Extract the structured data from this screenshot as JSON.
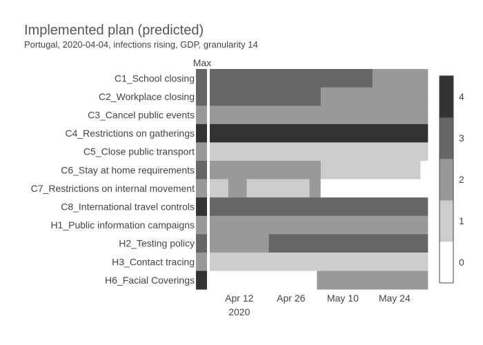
{
  "chart_data": {
    "type": "heatmap",
    "title": "Implemented plan (predicted)",
    "subtitle": "Portugal, 2020-04-04, infections rising, GDP, granularity 14",
    "max_label": "Max",
    "x_ticks": [
      {
        "date": "2020-04-12",
        "label": "Apr 12",
        "sublabel": "2020"
      },
      {
        "date": "2020-04-26",
        "label": "Apr 26",
        "sublabel": ""
      },
      {
        "date": "2020-05-10",
        "label": "May 10",
        "sublabel": ""
      },
      {
        "date": "2020-05-24",
        "label": "May 24",
        "sublabel": ""
      }
    ],
    "x_range": [
      "2020-04-04",
      "2020-06-02"
    ],
    "colorbar": {
      "ticks": [
        "0",
        "1",
        "2",
        "3",
        "4"
      ],
      "colors": [
        "#ffffff",
        "#cccccc",
        "#999999",
        "#666666",
        "#333333"
      ]
    },
    "rows": [
      {
        "name": "C1_School closing",
        "max": 3,
        "segments": [
          {
            "start": "2020-04-04",
            "end": "2020-05-18",
            "value": 3
          },
          {
            "start": "2020-05-18",
            "end": "2020-06-02",
            "value": 2
          }
        ]
      },
      {
        "name": "C2_Workplace closing",
        "max": 3,
        "segments": [
          {
            "start": "2020-04-04",
            "end": "2020-05-04",
            "value": 3
          },
          {
            "start": "2020-05-04",
            "end": "2020-06-02",
            "value": 2
          }
        ]
      },
      {
        "name": "C3_Cancel public events",
        "max": 2,
        "segments": [
          {
            "start": "2020-04-04",
            "end": "2020-06-02",
            "value": 2
          }
        ]
      },
      {
        "name": "C4_Restrictions on gatherings",
        "max": 4,
        "segments": [
          {
            "start": "2020-04-04",
            "end": "2020-06-02",
            "value": 4
          }
        ]
      },
      {
        "name": "C5_Close public transport",
        "max": 2,
        "segments": [
          {
            "start": "2020-04-04",
            "end": "2020-06-02",
            "value": 1
          }
        ]
      },
      {
        "name": "C6_Stay at home requirements",
        "max": 3,
        "segments": [
          {
            "start": "2020-04-04",
            "end": "2020-05-04",
            "value": 2
          },
          {
            "start": "2020-05-04",
            "end": "2020-05-31",
            "value": 1
          },
          {
            "start": "2020-05-31",
            "end": "2020-06-02",
            "value": 0
          }
        ]
      },
      {
        "name": "C7_Restrictions on internal movement",
        "max": 2,
        "segments": [
          {
            "start": "2020-04-04",
            "end": "2020-04-09",
            "value": 1
          },
          {
            "start": "2020-04-09",
            "end": "2020-04-14",
            "value": 2
          },
          {
            "start": "2020-04-14",
            "end": "2020-05-01",
            "value": 1
          },
          {
            "start": "2020-05-01",
            "end": "2020-05-04",
            "value": 2
          },
          {
            "start": "2020-05-04",
            "end": "2020-06-02",
            "value": 0
          }
        ]
      },
      {
        "name": "C8_International travel controls",
        "max": 4,
        "segments": [
          {
            "start": "2020-04-04",
            "end": "2020-06-02",
            "value": 3
          }
        ]
      },
      {
        "name": "H1_Public information campaigns",
        "max": 2,
        "segments": [
          {
            "start": "2020-04-04",
            "end": "2020-06-02",
            "value": 2
          }
        ]
      },
      {
        "name": "H2_Testing policy",
        "max": 3,
        "segments": [
          {
            "start": "2020-04-04",
            "end": "2020-04-20",
            "value": 2
          },
          {
            "start": "2020-04-20",
            "end": "2020-06-02",
            "value": 3
          }
        ]
      },
      {
        "name": "H3_Contact tracing",
        "max": 2,
        "segments": [
          {
            "start": "2020-04-04",
            "end": "2020-06-02",
            "value": 1
          }
        ]
      },
      {
        "name": "H6_Facial Coverings",
        "max": 4,
        "segments": [
          {
            "start": "2020-04-04",
            "end": "2020-05-03",
            "value": 0
          },
          {
            "start": "2020-05-03",
            "end": "2020-06-02",
            "value": 2
          }
        ]
      }
    ]
  }
}
